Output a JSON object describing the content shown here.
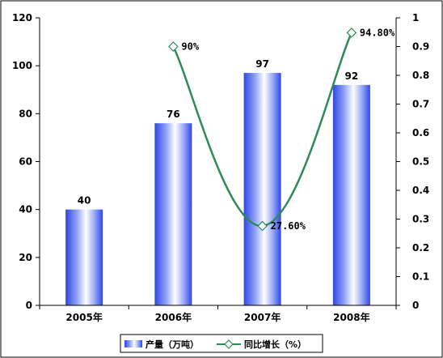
{
  "chart_data": {
    "type": "bar",
    "categories": [
      "2005年",
      "2006年",
      "2007年",
      "2008年"
    ],
    "series": [
      {
        "name": "产量（万吨）",
        "type": "bar",
        "axis": "left",
        "values": [
          40,
          76,
          97,
          92
        ],
        "labels": [
          "40",
          "76",
          "97",
          "92"
        ],
        "color": "#3a4fe0"
      },
      {
        "name": "同比增长（%）",
        "type": "line",
        "axis": "right",
        "values": [
          null,
          0.9,
          0.276,
          0.948
        ],
        "labels": [
          "",
          "90%",
          "27.60%",
          "94.80%"
        ],
        "color": "#2e8b57"
      }
    ],
    "y_left": {
      "ylim": [
        0,
        120
      ],
      "ticks": [
        "0",
        "20",
        "40",
        "60",
        "80",
        "100",
        "120"
      ]
    },
    "y_right": {
      "ylim": [
        0,
        1
      ],
      "ticks": [
        "0",
        "0.1",
        "0.2",
        "0.3",
        "0.4",
        "0.5",
        "0.6",
        "0.7",
        "0.8",
        "0.9",
        "1"
      ]
    },
    "grid": false,
    "legend": "bottom"
  }
}
